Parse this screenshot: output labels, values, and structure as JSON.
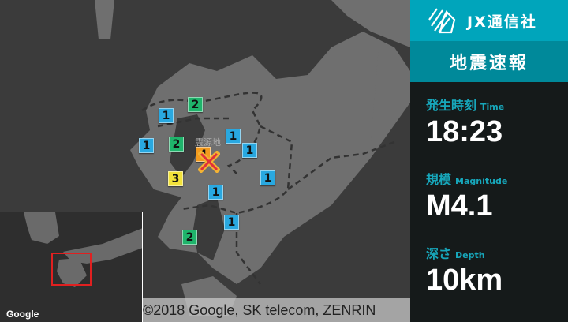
{
  "brand": {
    "name": "JX通信社",
    "logo": "jx-logo-icon"
  },
  "header": {
    "title": "地震速報"
  },
  "info": {
    "time": {
      "label": "発生時刻",
      "label_en": "Time",
      "value": "18:23"
    },
    "magnitude": {
      "label": "規模",
      "label_en": "Magnitude",
      "value": "M4.1"
    },
    "depth": {
      "label": "深さ",
      "label_en": "Depth",
      "value": "10km"
    }
  },
  "map": {
    "epicenter_label": "震源地",
    "google_logo": "Google",
    "attribution": "©2018 Google, SK telecom, ZENRIN",
    "intensity_colors": {
      "1": "#29a8e0",
      "2": "#1fb46b",
      "3": "#f2e23a",
      "4": "#f39a1e"
    },
    "intensities": [
      "2",
      "1",
      "1",
      "1",
      "2",
      "4",
      "1",
      "1",
      "3",
      "1",
      "1",
      "2"
    ]
  },
  "colors": {
    "brand": "#00a5bb",
    "header": "#00899a",
    "panel": "#151a1a",
    "accent_text": "#17a7bb"
  }
}
